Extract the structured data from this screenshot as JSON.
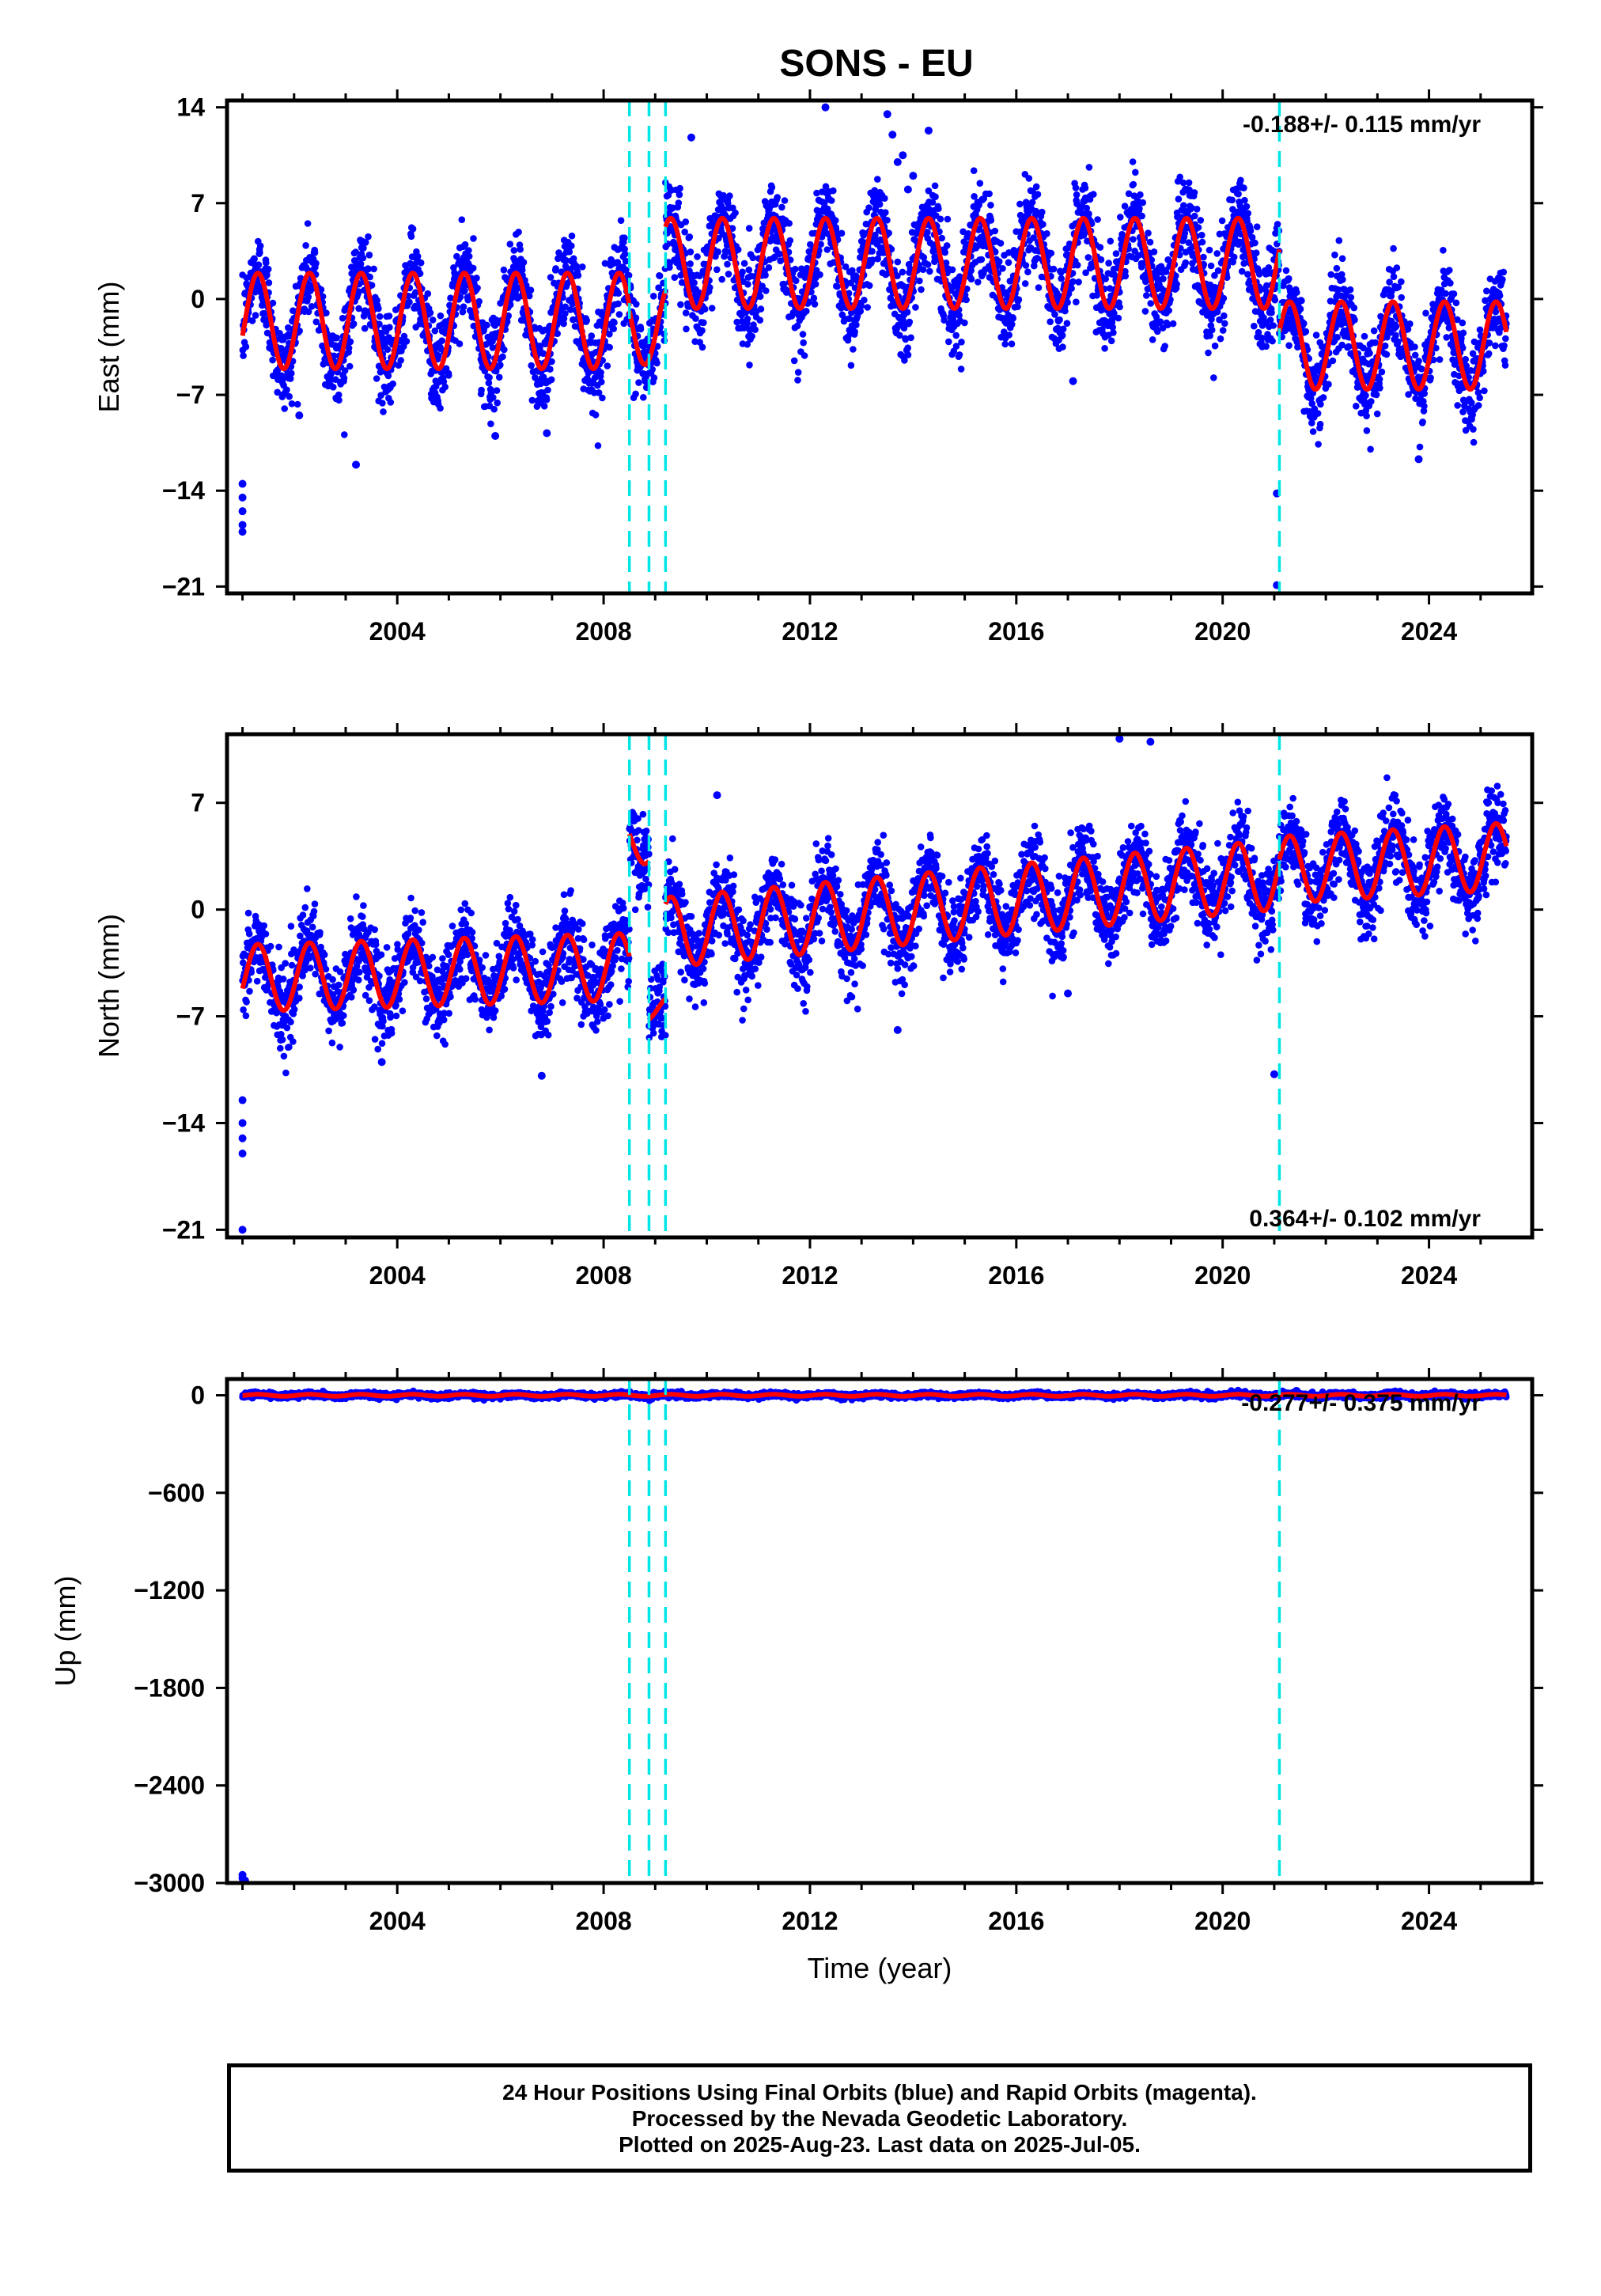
{
  "title": "SONS - EU",
  "footer": {
    "line1": "24 Hour Positions Using Final Orbits (blue) and Rapid Orbits (magenta).",
    "line2": "Processed by the Nevada Geodetic Laboratory.",
    "line3": "Plotted on 2025-Aug-23. Last data on 2025-Jul-05."
  },
  "colors": {
    "final_orbits": "#0000ff",
    "model": "#ff0000",
    "steps": "#00e5e5",
    "axes": "#000000"
  },
  "chart_data": [
    {
      "type": "scatter",
      "component": "east",
      "ylabel": "East (mm)",
      "xlim": [
        2000.7,
        2026.0
      ],
      "ylim": [
        -21.5,
        14.5
      ],
      "yticks": [
        14,
        7,
        0,
        -7,
        -14,
        -21
      ],
      "xticks": [
        2004,
        2008,
        2012,
        2016,
        2020,
        2024
      ],
      "rate_label": "-0.188+/- 0.115 mm/yr",
      "rate_position": "top-right",
      "equipment_changes": [
        2008.5,
        2008.88,
        2009.2,
        2021.1
      ],
      "segments": [
        {
          "start": 2001.0,
          "end": 2008.5,
          "offset": -1.6,
          "amplitude": 3.5,
          "noise": 1.6
        },
        {
          "start": 2008.5,
          "end": 2009.2,
          "offset": -1.8,
          "amplitude": 3.0,
          "noise": 1.6
        },
        {
          "start": 2009.2,
          "end": 2021.1,
          "offset": 2.6,
          "amplitude": 3.3,
          "noise": 1.7
        },
        {
          "start": 2021.1,
          "end": 2025.5,
          "offset": -3.4,
          "amplitude": 3.2,
          "noise": 1.6
        }
      ],
      "outliers": [
        {
          "x": 2001.0,
          "y": -13.5
        },
        {
          "x": 2001.0,
          "y": -14.5
        },
        {
          "x": 2001.0,
          "y": -15.5
        },
        {
          "x": 2001.0,
          "y": -16.5
        },
        {
          "x": 2001.0,
          "y": -17.0
        },
        {
          "x": 2002.1,
          "y": -8.5
        },
        {
          "x": 2003.2,
          "y": -12.1
        },
        {
          "x": 2005.9,
          "y": -10.0
        },
        {
          "x": 2006.9,
          "y": -9.8
        },
        {
          "x": 2009.7,
          "y": 11.8
        },
        {
          "x": 2012.3,
          "y": 14.0
        },
        {
          "x": 2013.5,
          "y": 13.5
        },
        {
          "x": 2013.6,
          "y": 12.0
        },
        {
          "x": 2013.8,
          "y": 10.5
        },
        {
          "x": 2014.0,
          "y": 9.0
        },
        {
          "x": 2014.3,
          "y": 12.3
        },
        {
          "x": 2013.9,
          "y": 8.0
        },
        {
          "x": 2017.1,
          "y": -6.0
        },
        {
          "x": 2021.05,
          "y": -14.2
        },
        {
          "x": 2021.05,
          "y": -20.9
        },
        {
          "x": 2023.8,
          "y": -11.7
        },
        {
          "x": 2013.7,
          "y": 10.0
        }
      ]
    },
    {
      "type": "scatter",
      "component": "north",
      "ylabel": "North (mm)",
      "xlim": [
        2000.7,
        2026.0
      ],
      "ylim": [
        -21.5,
        11.5
      ],
      "yticks": [
        7,
        0,
        -7,
        -14,
        -21
      ],
      "xticks": [
        2004,
        2008,
        2012,
        2016,
        2020,
        2024
      ],
      "rate_label": "0.364+/- 0.102 mm/yr",
      "rate_position": "bottom-right",
      "equipment_changes": [
        2008.5,
        2008.88,
        2009.2,
        2021.1
      ],
      "segments": [
        {
          "start": 2001.0,
          "end": 2008.5,
          "offset": -4.5,
          "amplitude": 2.2,
          "noise": 1.3,
          "slope": 0.1
        },
        {
          "start": 2008.5,
          "end": 2008.88,
          "offset": 4.5,
          "amplitude": 1.5,
          "noise": 1.3,
          "slope": 0.0
        },
        {
          "start": 2008.88,
          "end": 2009.2,
          "offset": -6.5,
          "amplitude": 0.8,
          "noise": 1.3,
          "slope": 0.0
        },
        {
          "start": 2009.2,
          "end": 2021.1,
          "offset": -1.5,
          "amplitude": 2.3,
          "noise": 1.3,
          "slope": 0.32
        },
        {
          "start": 2021.1,
          "end": 2025.5,
          "offset": 2.6,
          "amplitude": 2.2,
          "noise": 1.3,
          "slope": 0.2
        }
      ],
      "outliers": [
        {
          "x": 2001.0,
          "y": -12.5
        },
        {
          "x": 2001.0,
          "y": -14.0
        },
        {
          "x": 2001.0,
          "y": -15.0
        },
        {
          "x": 2001.0,
          "y": -16.0
        },
        {
          "x": 2001.0,
          "y": -21.0
        },
        {
          "x": 2003.7,
          "y": -10.0
        },
        {
          "x": 2006.8,
          "y": -10.9
        },
        {
          "x": 2013.7,
          "y": -7.9
        },
        {
          "x": 2018.0,
          "y": 11.2
        },
        {
          "x": 2018.6,
          "y": 11.0
        },
        {
          "x": 2021.0,
          "y": -10.8
        },
        {
          "x": 2017.0,
          "y": -5.5
        },
        {
          "x": 2010.2,
          "y": 7.5
        }
      ]
    },
    {
      "type": "scatter",
      "component": "up",
      "ylabel": "Up (mm)",
      "xlabel": "Time (year)",
      "xlim": [
        2000.7,
        2026.0
      ],
      "ylim": [
        -3000,
        100
      ],
      "yticks": [
        0,
        -600,
        -1200,
        -1800,
        -2400,
        -3000
      ],
      "xticks": [
        2004,
        2008,
        2012,
        2016,
        2020,
        2024
      ],
      "rate_label": "-0.277+/- 0.375 mm/yr",
      "rate_position": "top-right",
      "equipment_changes": [
        2008.5,
        2008.88,
        2009.2,
        2021.1
      ],
      "segments": [
        {
          "start": 2001.0,
          "end": 2025.5,
          "offset": 0,
          "amplitude": 6,
          "noise": 8
        }
      ],
      "outliers": [
        {
          "x": 2001.0,
          "y": -2950
        },
        {
          "x": 2001.0,
          "y": -2970
        },
        {
          "x": 2001.05,
          "y": -2985
        }
      ]
    }
  ]
}
